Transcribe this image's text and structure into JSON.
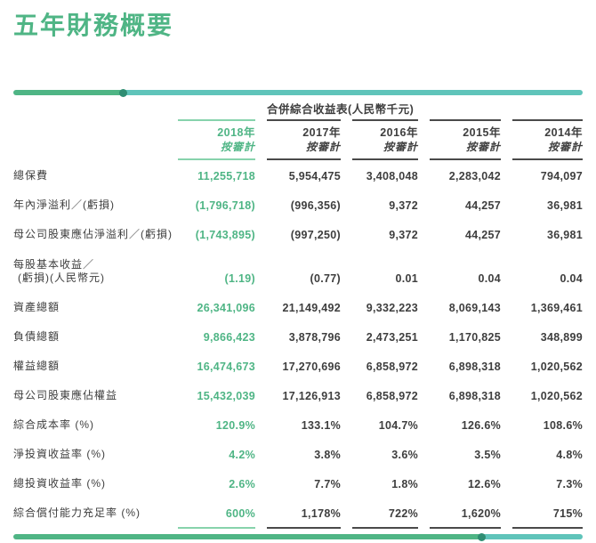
{
  "page": {
    "title": "五年財務概要",
    "colors": {
      "accent_green": "#4fb585",
      "accent_teal": "#5fc4ba",
      "text_dark": "#3e3e3e",
      "rule_dark": "#4a4a4a",
      "rule_green": "#87d3ac",
      "dot_dark_teal": "#2f8d72"
    }
  },
  "table": {
    "spanning_header": "合併綜合收益表(人民幣千元)",
    "columns": [
      {
        "year": "2018年",
        "note": "按審計",
        "highlight": true
      },
      {
        "year": "2017年",
        "note": "按審計",
        "highlight": false
      },
      {
        "year": "2016年",
        "note": "按審計",
        "highlight": false
      },
      {
        "year": "2015年",
        "note": "按審計",
        "highlight": false
      },
      {
        "year": "2014年",
        "note": "按審計",
        "highlight": false
      }
    ],
    "rows": [
      {
        "label": "總保費",
        "values": [
          "11,255,718",
          "5,954,475",
          "3,408,048",
          "2,283,042",
          "794,097"
        ]
      },
      {
        "label": "年內淨溢利／(虧損)",
        "values": [
          "(1,796,718)",
          "(996,356)",
          "9,372",
          "44,257",
          "36,981"
        ]
      },
      {
        "label": "母公司股東應佔淨溢利／(虧損)",
        "values": [
          "(1,743,895)",
          "(997,250)",
          "9,372",
          "44,257",
          "36,981"
        ]
      },
      {
        "label": "每股基本收益／",
        "label2": "(虧損)(人民幣元)",
        "values": [
          "(1.19)",
          "(0.77)",
          "0.01",
          "0.04",
          "0.04"
        ]
      },
      {
        "label": "資產總額",
        "values": [
          "26,341,096",
          "21,149,492",
          "9,332,223",
          "8,069,143",
          "1,369,461"
        ]
      },
      {
        "label": "負債總額",
        "values": [
          "9,866,423",
          "3,878,796",
          "2,473,251",
          "1,170,825",
          "348,899"
        ]
      },
      {
        "label": "權益總額",
        "values": [
          "16,474,673",
          "17,270,696",
          "6,858,972",
          "6,898,318",
          "1,020,562"
        ]
      },
      {
        "label": "母公司股東應佔權益",
        "values": [
          "15,432,039",
          "17,126,913",
          "6,858,972",
          "6,898,318",
          "1,020,562"
        ]
      },
      {
        "label": "綜合成本率 (%)",
        "values": [
          "120.9%",
          "133.1%",
          "104.7%",
          "126.6%",
          "108.6%"
        ]
      },
      {
        "label": "淨投資收益率 (%)",
        "values": [
          "4.2%",
          "3.8%",
          "3.6%",
          "3.5%",
          "4.8%"
        ]
      },
      {
        "label": "總投資收益率 (%)",
        "values": [
          "2.6%",
          "7.7%",
          "1.8%",
          "12.6%",
          "7.3%"
        ]
      },
      {
        "label": "綜合償付能力充足率 (%)",
        "values": [
          "600%",
          "1,178%",
          "722%",
          "1,620%",
          "715%"
        ]
      }
    ]
  }
}
